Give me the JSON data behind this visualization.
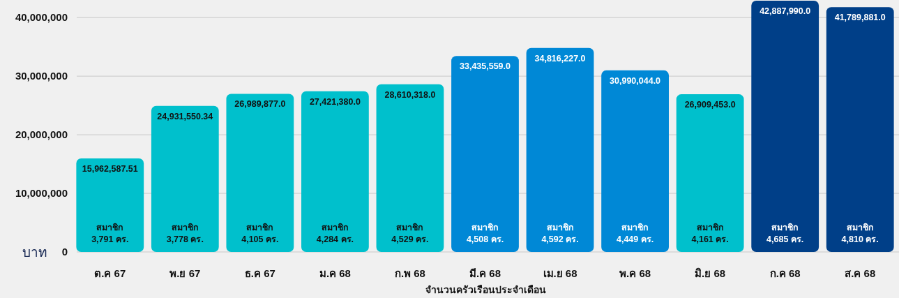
{
  "chart_data": {
    "type": "bar",
    "xlabel": "จำนวนครัวเรือนประจำเดือน",
    "ylabel": "บาท",
    "categories": [
      "ต.ค 67",
      "พ.ย 67",
      "ธ.ค 67",
      "ม.ค 68",
      "ก.พ 68",
      "มี.ค 68",
      "เม.ย 68",
      "พ.ค 68",
      "มิ.ย 68",
      "ก.ค 68",
      "ส.ค 68"
    ],
    "values": [
      15962587.51,
      24931550.34,
      26989877.0,
      27421380.0,
      28610318.0,
      33435559.0,
      34816227.0,
      30990044.0,
      26909453.0,
      42887990.0,
      41789881.0
    ],
    "value_labels": [
      "15,962,587.51",
      "24,931,550.34",
      "26,989,877.0",
      "27,421,380.0",
      "28,610,318.0",
      "33,435,559.0",
      "34,816,227.0",
      "30,990,044.0",
      "26,909,453.0",
      "42,887,990.0",
      "41,789,881.0"
    ],
    "colors": [
      "#00c0cc",
      "#00c0cc",
      "#00c0cc",
      "#00c0cc",
      "#00c0cc",
      "#0088d6",
      "#0088d6",
      "#0088d6",
      "#00c0cc",
      "#003f88",
      "#003f88"
    ],
    "ylim": [
      0,
      43000000
    ],
    "yticks": [
      0,
      {
        "value": 10000000,
        "label": "10,000,000"
      },
      {
        "value": 20000000,
        "label": "20,000,000"
      },
      {
        "value": 30000000,
        "label": "30,000,000"
      },
      {
        "value": 40000000,
        "label": "40,000,000"
      }
    ],
    "grid": "y",
    "annotations": [
      "สมาชิก\n3,791 คร.",
      "สมาชิก\n3,778 คร.",
      "สมาชิก\n4,105 คร.",
      "สมาชิก\n4,284 คร.",
      "สมาชิก\n4,529 คร.",
      "สมาชิก\n4,508 คร.",
      "สมาชิก\n4,592 คร.",
      "สมาชิก\n4,449 คร.",
      "สมาชิก\n4,161 คร.",
      "สมาชิก\n4,685 คร.",
      "สมาชิก\n4,810 คร."
    ]
  }
}
